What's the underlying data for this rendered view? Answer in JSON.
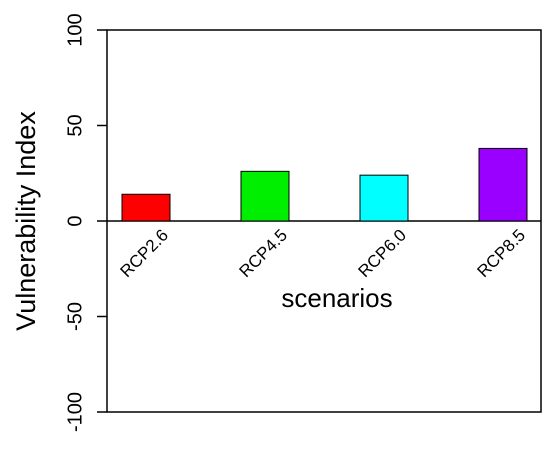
{
  "chart_data": {
    "type": "bar",
    "categories": [
      "RCP2.6",
      "RCP4.5",
      "RCP6.0",
      "RCP8.5"
    ],
    "values": [
      14,
      26,
      24,
      38
    ],
    "colors": [
      "#ff0000",
      "#00ee00",
      "#00ffff",
      "#9900ff"
    ],
    "x_label": "scenarios",
    "y_label": "Vulnerability Index",
    "ylim": [
      -100,
      100
    ],
    "yticks": [
      -100,
      -50,
      0,
      50,
      100
    ]
  }
}
